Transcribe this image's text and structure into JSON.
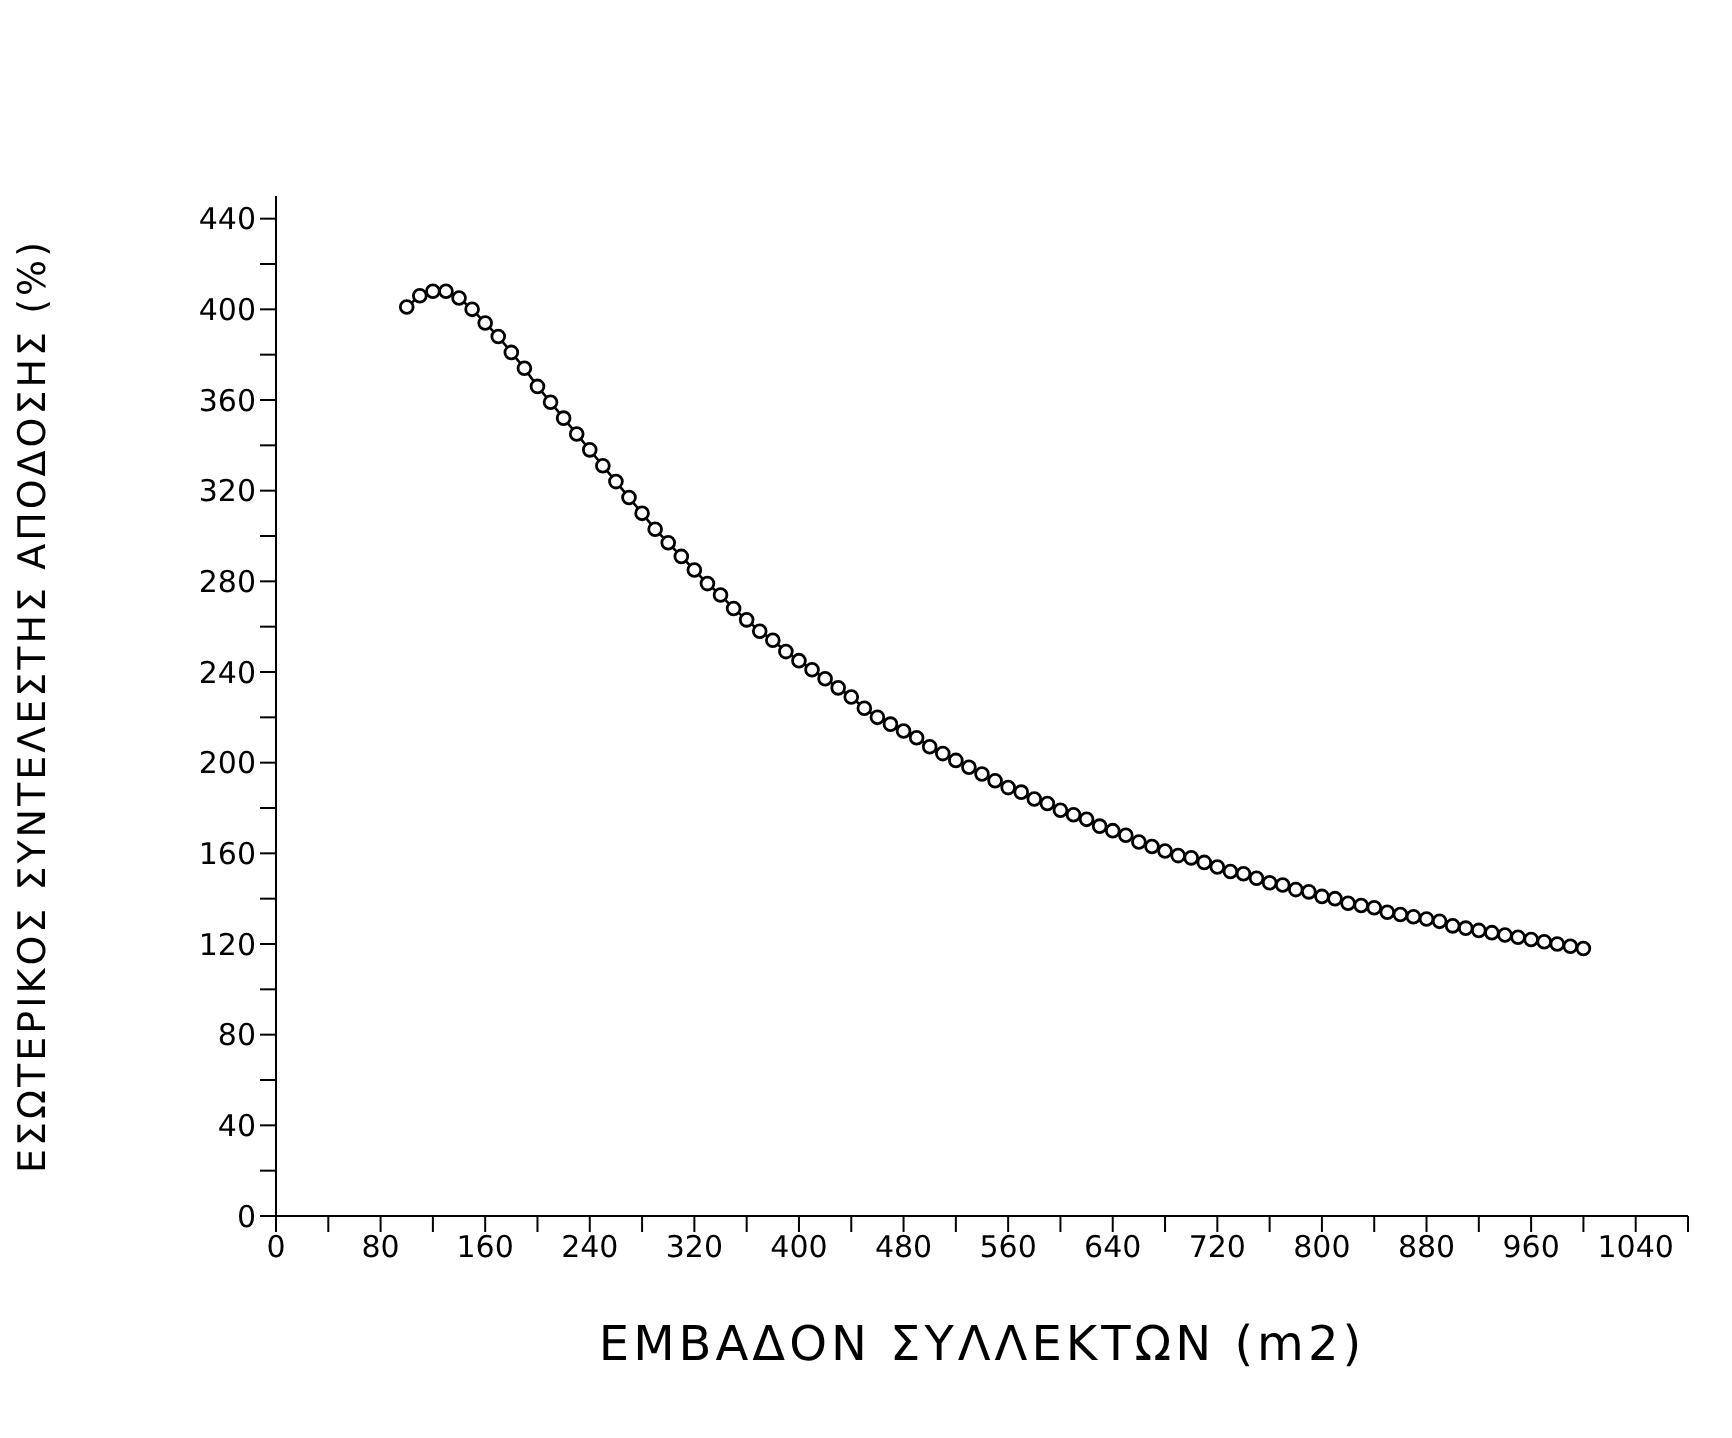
{
  "chart_data": {
    "type": "line",
    "xlabel": "ΕΜΒΑΔΟΝ ΣΥΛΛΕΚΤΩΝ (m2)",
    "ylabel": "ΕΣΩΤΕΡΙΚΟΣ ΣΥΝΤΕΛΕΣΤΗΣ ΑΠΟΔΟΣΗΣ (%)",
    "x": [
      100,
      110,
      120,
      130,
      140,
      150,
      160,
      170,
      180,
      190,
      200,
      210,
      220,
      230,
      240,
      250,
      260,
      270,
      280,
      290,
      300,
      310,
      320,
      330,
      340,
      350,
      360,
      370,
      380,
      390,
      400,
      410,
      420,
      430,
      440,
      450,
      460,
      470,
      480,
      490,
      500,
      510,
      520,
      530,
      540,
      550,
      560,
      570,
      580,
      590,
      600,
      610,
      620,
      630,
      640,
      650,
      660,
      670,
      680,
      690,
      700,
      710,
      720,
      730,
      740,
      750,
      760,
      770,
      780,
      790,
      800,
      810,
      820,
      830,
      840,
      850,
      860,
      870,
      880,
      890,
      900,
      910,
      920,
      930,
      940,
      950,
      960,
      970,
      980,
      990,
      1000
    ],
    "series": [
      {
        "color": "#000000",
        "values": [
          401,
          406,
          408,
          408,
          405,
          400,
          394,
          388,
          381,
          374,
          366,
          359,
          352,
          345,
          338,
          331,
          324,
          317,
          310,
          303,
          297,
          291,
          285,
          279,
          274,
          268,
          263,
          258,
          254,
          249,
          245,
          241,
          237,
          233,
          229,
          224,
          220,
          217,
          214,
          211,
          207,
          204,
          201,
          198,
          195,
          192,
          189,
          187,
          184,
          182,
          179,
          177,
          175,
          172,
          170,
          168,
          165,
          163,
          161,
          159,
          158,
          156,
          154,
          152,
          151,
          149,
          147,
          146,
          144,
          143,
          141,
          140,
          138,
          137,
          136,
          134,
          133,
          132,
          131,
          130,
          128,
          127,
          126,
          125,
          124,
          123,
          122,
          121,
          120,
          119,
          118
        ]
      }
    ],
    "marker": "circle",
    "line_style": "solid",
    "grid": false,
    "legend": false,
    "xlim": [
      0,
      1080
    ],
    "xticks": [
      0,
      {
        "value": 40,
        "label": null
      },
      80,
      {
        "value": 120,
        "label": null
      },
      160,
      {
        "value": 200,
        "label": null
      },
      240,
      {
        "value": 280,
        "label": null
      },
      320,
      {
        "value": 360,
        "label": null
      },
      400,
      {
        "value": 440,
        "label": null
      },
      480,
      {
        "value": 520,
        "label": null
      },
      560,
      {
        "value": 600,
        "label": null
      },
      640,
      {
        "value": 680,
        "label": null
      },
      720,
      {
        "value": 760,
        "label": null
      },
      800,
      {
        "value": 840,
        "label": null
      },
      880,
      {
        "value": 920,
        "label": null
      },
      960,
      {
        "value": 1000,
        "label": null
      },
      1040,
      {
        "value": 1080,
        "label": null
      }
    ],
    "ylim": [
      0,
      450
    ],
    "yticks": [
      0,
      {
        "value": 20,
        "label": null
      },
      40,
      {
        "value": 60,
        "label": null
      },
      80,
      {
        "value": 100,
        "label": null
      },
      120,
      {
        "value": 140,
        "label": null
      },
      160,
      {
        "value": 180,
        "label": null
      },
      200,
      {
        "value": 220,
        "label": null
      },
      240,
      {
        "value": 260,
        "label": null
      },
      280,
      {
        "value": 300,
        "label": null
      },
      320,
      {
        "value": 340,
        "label": null
      },
      360,
      {
        "value": 380,
        "label": null
      },
      400,
      {
        "value": 420,
        "label": null
      },
      440
    ]
  }
}
